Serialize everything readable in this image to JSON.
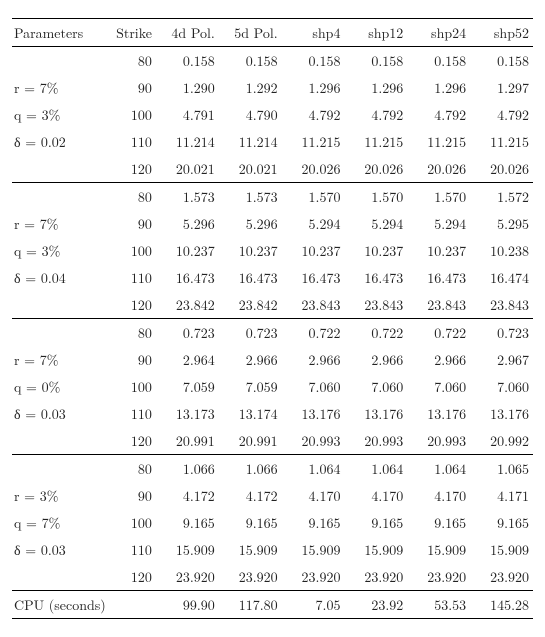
{
  "columns": {
    "params": "Parameters",
    "strike": "Strike",
    "c4": "4d Pol.",
    "c5": "5d Pol.",
    "shp4": "shp4",
    "shp12": "shp12",
    "shp24": "shp24",
    "shp52": "shp52"
  },
  "sections": [
    {
      "params": [
        "r = 7%",
        "q = 3%",
        "δ = 0.02"
      ],
      "rows": [
        {
          "strike": "80",
          "v": [
            "0.158",
            "0.158",
            "0.158",
            "0.158",
            "0.158",
            "0.158"
          ]
        },
        {
          "strike": "90",
          "v": [
            "1.290",
            "1.292",
            "1.296",
            "1.296",
            "1.296",
            "1.297"
          ]
        },
        {
          "strike": "100",
          "v": [
            "4.791",
            "4.790",
            "4.792",
            "4.792",
            "4.792",
            "4.792"
          ]
        },
        {
          "strike": "110",
          "v": [
            "11.214",
            "11.214",
            "11.215",
            "11.215",
            "11.215",
            "11.215"
          ]
        },
        {
          "strike": "120",
          "v": [
            "20.021",
            "20.021",
            "20.026",
            "20.026",
            "20.026",
            "20.026"
          ]
        }
      ]
    },
    {
      "params": [
        "r = 7%",
        "q = 3%",
        "δ = 0.04"
      ],
      "rows": [
        {
          "strike": "80",
          "v": [
            "1.573",
            "1.573",
            "1.570",
            "1.570",
            "1.570",
            "1.572"
          ]
        },
        {
          "strike": "90",
          "v": [
            "5.296",
            "5.296",
            "5.294",
            "5.294",
            "5.294",
            "5.295"
          ]
        },
        {
          "strike": "100",
          "v": [
            "10.237",
            "10.237",
            "10.237",
            "10.237",
            "10.237",
            "10.238"
          ]
        },
        {
          "strike": "110",
          "v": [
            "16.473",
            "16.473",
            "16.473",
            "16.473",
            "16.473",
            "16.474"
          ]
        },
        {
          "strike": "120",
          "v": [
            "23.842",
            "23.842",
            "23.843",
            "23.843",
            "23.843",
            "23.843"
          ]
        }
      ]
    },
    {
      "params": [
        "r = 7%",
        "q = 0%",
        "δ = 0.03"
      ],
      "rows": [
        {
          "strike": "80",
          "v": [
            "0.723",
            "0.723",
            "0.722",
            "0.722",
            "0.722",
            "0.723"
          ]
        },
        {
          "strike": "90",
          "v": [
            "2.964",
            "2.966",
            "2.966",
            "2.966",
            "2.966",
            "2.967"
          ]
        },
        {
          "strike": "100",
          "v": [
            "7.059",
            "7.059",
            "7.060",
            "7.060",
            "7.060",
            "7.060"
          ]
        },
        {
          "strike": "110",
          "v": [
            "13.173",
            "13.174",
            "13.176",
            "13.176",
            "13.176",
            "13.176"
          ]
        },
        {
          "strike": "120",
          "v": [
            "20.991",
            "20.991",
            "20.993",
            "20.993",
            "20.993",
            "20.992"
          ]
        }
      ]
    },
    {
      "params": [
        "r = 3%",
        "q = 7%",
        "δ = 0.03"
      ],
      "rows": [
        {
          "strike": "80",
          "v": [
            "1.066",
            "1.066",
            "1.064",
            "1.064",
            "1.064",
            "1.065"
          ]
        },
        {
          "strike": "90",
          "v": [
            "4.172",
            "4.172",
            "4.170",
            "4.170",
            "4.170",
            "4.171"
          ]
        },
        {
          "strike": "100",
          "v": [
            "9.165",
            "9.165",
            "9.165",
            "9.165",
            "9.165",
            "9.165"
          ]
        },
        {
          "strike": "110",
          "v": [
            "15.909",
            "15.909",
            "15.909",
            "15.909",
            "15.909",
            "15.909"
          ]
        },
        {
          "strike": "120",
          "v": [
            "23.920",
            "23.920",
            "23.920",
            "23.920",
            "23.920",
            "23.920"
          ]
        }
      ]
    }
  ],
  "cpu": {
    "label": "CPU (seconds)",
    "v": [
      "99.90",
      "117.80",
      "7.05",
      "23.92",
      "53.53",
      "145.28"
    ]
  }
}
